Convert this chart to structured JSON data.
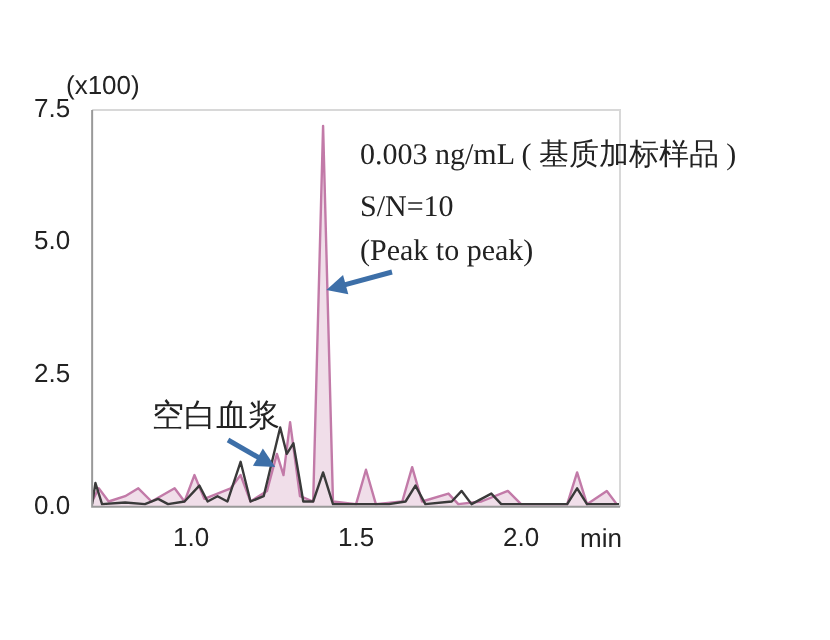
{
  "chart_data": {
    "type": "line",
    "xlabel": "min",
    "xlim": [
      0.7,
      2.3
    ],
    "xticks": [
      {
        "value": 1,
        "label": "1.0"
      },
      1.5,
      {
        "value": 2,
        "label": "2.0"
      }
    ],
    "ylim": [
      0,
      7.5
    ],
    "yticks": [
      {
        "value": 0,
        "label": "0.0"
      },
      2.5,
      {
        "value": 5,
        "label": "5.0"
      },
      7.5
    ],
    "grid": false,
    "legend": false,
    "marker": "none",
    "line_style": "solid",
    "annotations": [
      "(x100)",
      "0.003 ng/mL ( 基质加标样品 )",
      "S/N=10",
      {
        "text": "(Peak to peak)",
        "x": 1.41,
        "y": 4.1
      },
      {
        "text": "空白血浆",
        "x": 1.255,
        "y": 0.75
      }
    ],
    "series": [
      {
        "type": "area",
        "color": "#c27aa8",
        "x": [
          0.7,
          0.72,
          0.75,
          0.8,
          0.84,
          0.88,
          0.95,
          0.98,
          1.01,
          1.04,
          1.12,
          1.15,
          1.18,
          1.23,
          1.26,
          1.28,
          1.3,
          1.33,
          1.37,
          1.4,
          1.43,
          1.5,
          1.53,
          1.56,
          1.64,
          1.67,
          1.7,
          1.78,
          1.81,
          1.88,
          1.96,
          2.0,
          2.14,
          2.17,
          2.2,
          2.26,
          2.29
        ],
        "values": [
          0.1,
          0.35,
          0.1,
          0.2,
          0.35,
          0.1,
          0.35,
          0.1,
          0.6,
          0.15,
          0.35,
          0.6,
          0.1,
          0.3,
          1.0,
          0.6,
          1.6,
          0.2,
          0.1,
          7.2,
          0.1,
          0.05,
          0.7,
          0.05,
          0.1,
          0.75,
          0.1,
          0.25,
          0.05,
          0.1,
          0.3,
          0.05,
          0.05,
          0.65,
          0.05,
          0.3,
          0.05
        ]
      },
      {
        "type": "line",
        "color": "#3a3a3a",
        "x": [
          0.7,
          0.71,
          0.73,
          0.8,
          0.86,
          0.9,
          0.93,
          0.98,
          1.025,
          1.05,
          1.08,
          1.11,
          1.15,
          1.18,
          1.22,
          1.27,
          1.29,
          1.31,
          1.34,
          1.37,
          1.4,
          1.43,
          1.5,
          1.6,
          1.65,
          1.68,
          1.71,
          1.79,
          1.82,
          1.85,
          1.91,
          1.94,
          2.14,
          2.17,
          2.2,
          2.3
        ],
        "values": [
          0.05,
          0.45,
          0.05,
          0.08,
          0.05,
          0.15,
          0.05,
          0.1,
          0.4,
          0.1,
          0.2,
          0.1,
          0.85,
          0.1,
          0.2,
          1.5,
          1.0,
          1.2,
          0.1,
          0.1,
          0.65,
          0.05,
          0.05,
          0.05,
          0.1,
          0.4,
          0.05,
          0.1,
          0.3,
          0.05,
          0.25,
          0.05,
          0.05,
          0.35,
          0.05,
          0.05
        ]
      }
    ]
  }
}
